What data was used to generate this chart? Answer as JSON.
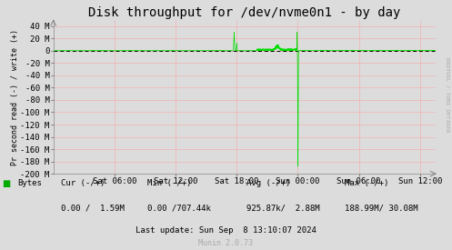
{
  "title": "Disk throughput for /dev/nvme0n1 - by day",
  "ylabel": "Pr second read (-) / write (+)",
  "bg_color": "#dcdcdc",
  "plot_bg_color": "#dcdcdc",
  "grid_color": "#ff9999",
  "line_color": "#00dd00",
  "zero_line_color": "#000000",
  "ylim": [
    -200000000,
    50000000
  ],
  "yticks": [
    -200000000,
    -180000000,
    -160000000,
    -140000000,
    -120000000,
    -100000000,
    -80000000,
    -60000000,
    -40000000,
    -20000000,
    0,
    20000000,
    40000000
  ],
  "ytick_labels": [
    "-200 M",
    "-180 M",
    "-160 M",
    "-140 M",
    "-120 M",
    "-100 M",
    "-80 M",
    "-60 M",
    "-40 M",
    "-20 M",
    "0",
    "20 M",
    "40 M"
  ],
  "xtick_labels": [
    "Sat 06:00",
    "Sat 12:00",
    "Sat 18:00",
    "Sun 00:00",
    "Sun 06:00",
    "Sun 12:00"
  ],
  "xtick_positions": [
    360,
    720,
    1080,
    1440,
    1800,
    2160
  ],
  "xlim": [
    0,
    2250
  ],
  "legend_label": "Bytes",
  "legend_color": "#00aa00",
  "rrdtool_label": "RRDTOOL / TOBI OETIKER",
  "cur_label": "Cur (-/+)",
  "min_label": "Min (-/+)",
  "avg_label": "Avg (-/+)",
  "max_label": "Max (-/+)",
  "cur_val": "0.00 /  1.59M",
  "min_val": "0.00 /707.44k",
  "avg_val": "925.87k/  2.88M",
  "max_val": "188.99M/ 30.08M",
  "last_update": "Last update: Sun Sep  8 13:10:07 2024",
  "munin": "Munin 2.0.73",
  "title_fontsize": 10,
  "tick_fontsize": 6.5,
  "footer_fontsize": 6.5
}
